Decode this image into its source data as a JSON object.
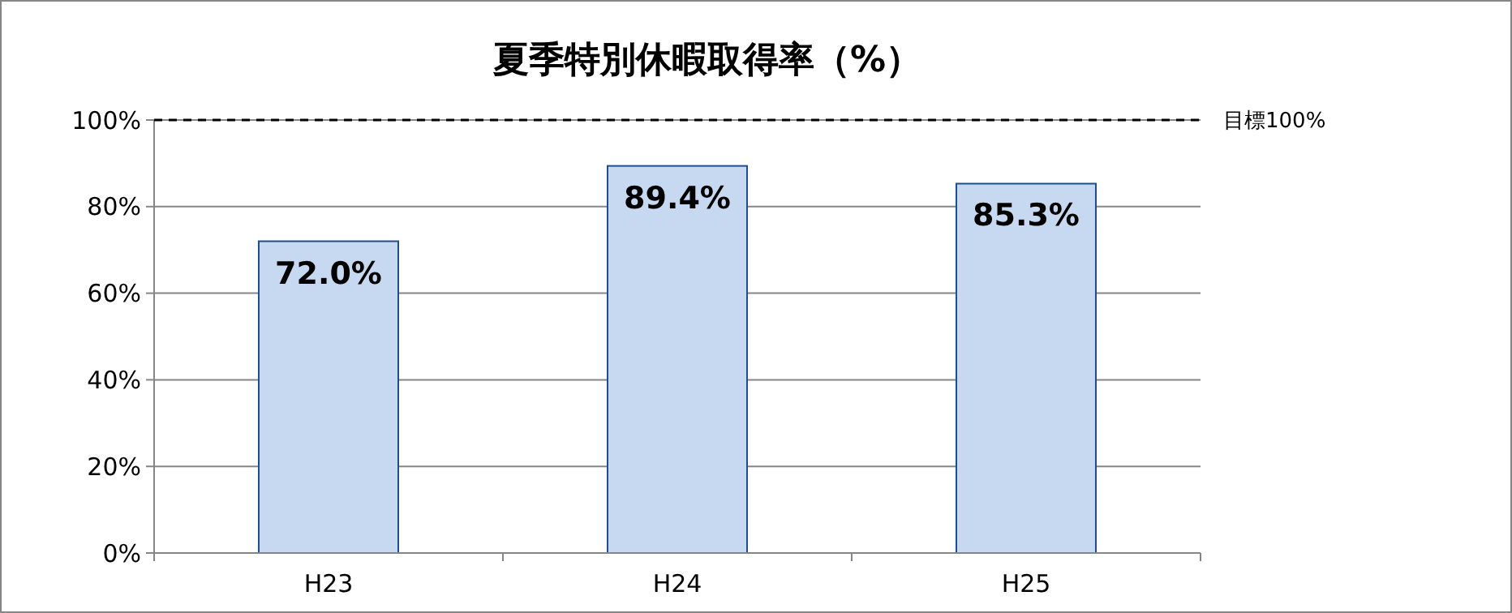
{
  "chart_data": {
    "type": "bar",
    "title": "夏季特別休暇取得率（%）",
    "categories": [
      "H23",
      "H24",
      "H25"
    ],
    "values": [
      72.0,
      89.4,
      85.3
    ],
    "value_labels": [
      "72.0%",
      "89.4%",
      "85.3%"
    ],
    "color": "#c6d9f1",
    "ylim": [
      0,
      100
    ],
    "yticks": [
      {
        "value": 0,
        "label": "0%"
      },
      {
        "value": 20,
        "label": "20%"
      },
      {
        "value": 40,
        "label": "40%"
      },
      {
        "value": 60,
        "label": "60%"
      },
      {
        "value": 80,
        "label": "80%"
      },
      {
        "value": 100,
        "label": "100%"
      }
    ],
    "grid": "y",
    "ref_lines": [
      {
        "axis": "y",
        "value": 100,
        "label": "目標100%",
        "line_style": "dashed",
        "color": "#000000"
      }
    ]
  }
}
